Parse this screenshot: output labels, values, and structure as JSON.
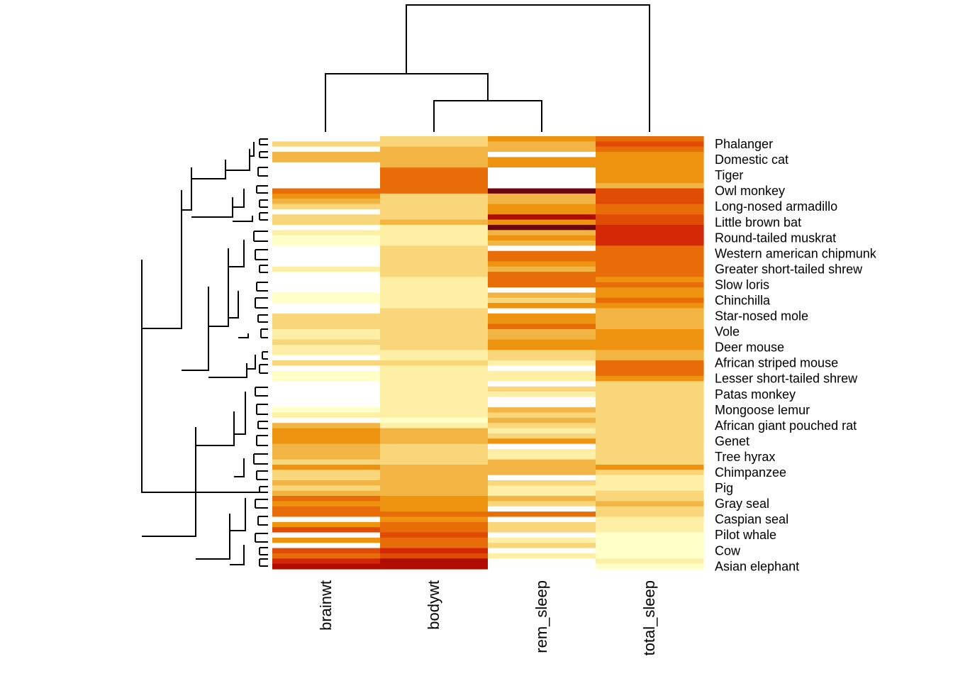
{
  "chart_data": {
    "type": "heatmap",
    "title": "",
    "xlabel": "",
    "ylabel": "",
    "columns": [
      "brainwt",
      "bodywt",
      "rem_sleep",
      "total_sleep"
    ],
    "row_labels": [
      "Phalanger",
      "Domestic cat",
      "Tiger",
      "Owl monkey",
      "Long-nosed armadillo",
      "Little brown bat",
      "Round-tailed muskrat",
      "Western american chipmunk",
      "Greater short-tailed shrew",
      "Slow loris",
      "Chinchilla",
      "Star-nosed mole",
      "Vole",
      "Deer mouse",
      "African striped mouse",
      "Lesser short-tailed shrew",
      "Patas monkey",
      "Mongoose lemur",
      "African giant pouched rat",
      "Genet",
      "Tree hyrax",
      "Chimpanzee",
      "Pig",
      "Gray seal",
      "Caspian seal",
      "Pilot whale",
      "Cow",
      "Asian elephant"
    ],
    "n_rows": 83,
    "row_dendrogram": true,
    "column_dendrogram": true,
    "legend": "none",
    "grid": false,
    "color_scale": [
      "#ffffc8",
      "#fdf0a6",
      "#f9d67a",
      "#f2b443",
      "#ee9310",
      "#e86c07",
      "#e04c06",
      "#d22806",
      "#b00d02",
      "#6b0511"
    ],
    "column_dendrogram_merges": [
      {
        "left": "bodywt",
        "right": "rem_sleep"
      },
      {
        "left": "brainwt",
        "right": "bodywt+rem_sleep"
      },
      {
        "left": "brainwt+bodywt+rem_sleep",
        "right": "total_sleep"
      }
    ],
    "values": [
      [
        -1,
        2,
        4,
        5
      ],
      [
        2,
        2,
        3,
        6
      ],
      [
        -1,
        3,
        3,
        5
      ],
      [
        3,
        3,
        -1,
        4
      ],
      [
        3,
        3,
        4,
        4
      ],
      [
        -1,
        3,
        4,
        4
      ],
      [
        -1,
        5,
        -1,
        4
      ],
      [
        -1,
        5,
        -1,
        4
      ],
      [
        -1,
        5,
        -1,
        4
      ],
      [
        -1,
        5,
        -1,
        3
      ],
      [
        5,
        5,
        9,
        6
      ],
      [
        4,
        2,
        3,
        6
      ],
      [
        3,
        2,
        3,
        6
      ],
      [
        2,
        2,
        4,
        5
      ],
      [
        -1,
        2,
        4,
        5
      ],
      [
        2,
        2,
        8,
        6
      ],
      [
        2,
        3,
        4,
        6
      ],
      [
        -1,
        1,
        9,
        7
      ],
      [
        1,
        1,
        3,
        7
      ],
      [
        0,
        1,
        4,
        7
      ],
      [
        0,
        1,
        3,
        7
      ],
      [
        -1,
        2,
        -1,
        5
      ],
      [
        -1,
        2,
        5,
        5
      ],
      [
        -1,
        2,
        5,
        5
      ],
      [
        -1,
        2,
        4,
        5
      ],
      [
        1,
        2,
        3,
        5
      ],
      [
        -1,
        2,
        5,
        5
      ],
      [
        -1,
        1,
        5,
        4
      ],
      [
        -1,
        1,
        5,
        5
      ],
      [
        -1,
        1,
        -1,
        4
      ],
      [
        0,
        1,
        3,
        4
      ],
      [
        0,
        1,
        2,
        5
      ],
      [
        -1,
        1,
        4,
        4
      ],
      [
        -1,
        2,
        -1,
        3
      ],
      [
        2,
        2,
        4,
        3
      ],
      [
        2,
        2,
        4,
        3
      ],
      [
        2,
        2,
        5,
        3
      ],
      [
        1,
        2,
        3,
        4
      ],
      [
        1,
        2,
        3,
        4
      ],
      [
        2,
        2,
        4,
        4
      ],
      [
        1,
        2,
        4,
        4
      ],
      [
        1,
        1,
        2,
        3
      ],
      [
        -1,
        1,
        2,
        3
      ],
      [
        2,
        2,
        1,
        5
      ],
      [
        -1,
        1,
        -1,
        5
      ],
      [
        0,
        1,
        1,
        5
      ],
      [
        0,
        1,
        1,
        4
      ],
      [
        -1,
        1,
        -1,
        2
      ],
      [
        -1,
        1,
        2,
        2
      ],
      [
        -1,
        1,
        1,
        2
      ],
      [
        -1,
        1,
        -1,
        2
      ],
      [
        -1,
        1,
        -1,
        2
      ],
      [
        0,
        1,
        3,
        2
      ],
      [
        1,
        1,
        2,
        2
      ],
      [
        -1,
        0,
        3,
        2
      ],
      [
        3,
        1,
        2,
        2
      ],
      [
        4,
        3,
        1,
        2
      ],
      [
        4,
        3,
        2,
        2
      ],
      [
        4,
        3,
        4,
        2
      ],
      [
        3,
        2,
        -1,
        2
      ],
      [
        3,
        2,
        1,
        2
      ],
      [
        3,
        2,
        1,
        2
      ],
      [
        2,
        2,
        3,
        2
      ],
      [
        4,
        3,
        3,
        4
      ],
      [
        2,
        3,
        3,
        2
      ],
      [
        2,
        3,
        -1,
        1
      ],
      [
        3,
        3,
        2,
        1
      ],
      [
        2,
        3,
        1,
        1
      ],
      [
        3,
        3,
        1,
        2
      ],
      [
        5,
        4,
        3,
        2
      ],
      [
        4,
        4,
        2,
        3
      ],
      [
        5,
        4,
        -1,
        2
      ],
      [
        5,
        5,
        5,
        2
      ],
      [
        -1,
        4,
        -1,
        1
      ],
      [
        4,
        5,
        2,
        1
      ],
      [
        6,
        5,
        2,
        1
      ],
      [
        -1,
        6,
        -1,
        0
      ],
      [
        4,
        5,
        1,
        0
      ],
      [
        -1,
        5,
        2,
        0
      ],
      [
        6,
        7,
        -1,
        0
      ],
      [
        5,
        6,
        1,
        0
      ],
      [
        7,
        8,
        -1,
        1
      ],
      [
        8,
        8,
        -1,
        0
      ]
    ]
  }
}
